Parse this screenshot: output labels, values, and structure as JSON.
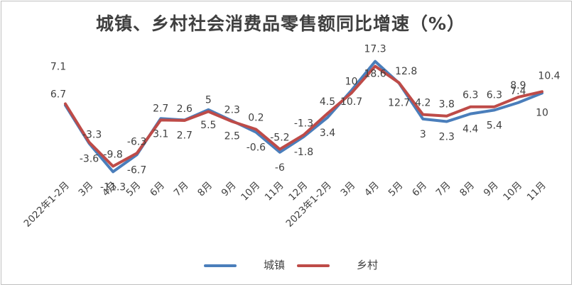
{
  "chart_data": {
    "type": "line",
    "title": "城镇、乡村社会消费品零售额同比增速（%）",
    "categories": [
      "2022年1-2月",
      "3月",
      "4月",
      "5月",
      "6月",
      "7月",
      "8月",
      "9月",
      "10月",
      "11月",
      "12月",
      "2023年1-2月",
      "3月",
      "4月",
      "5月",
      "6月",
      "7月",
      "8月",
      "9月",
      "10月",
      "11月"
    ],
    "series": [
      {
        "name": "城镇",
        "color": "#4a7ebb",
        "values": [
          6.7,
          -3.6,
          -11.3,
          -6.7,
          3.1,
          2.7,
          5.5,
          2.5,
          -0.6,
          -6,
          -1.8,
          3.4,
          10.7,
          18.6,
          12.7,
          3,
          2.3,
          4.4,
          5.4,
          7.4,
          10
        ],
        "labels": [
          "6.7",
          "-3.6",
          "-11.3",
          "-6.7",
          "3.1",
          "2.7",
          "5.5",
          "2.5",
          "-0.6",
          "-6",
          "-1.8",
          "3.4",
          "10.7",
          "18.6",
          "12.7",
          "3",
          "2.3",
          "4.4",
          "5.4",
          "7.4",
          "10"
        ]
      },
      {
        "name": "乡村",
        "color": "#be4b48",
        "values": [
          7.1,
          -3.3,
          -9.8,
          -6.3,
          2.7,
          2.6,
          5,
          2.3,
          0.2,
          -5.2,
          -1.3,
          4.5,
          10,
          17.3,
          12.8,
          4.2,
          3.8,
          6.3,
          6.3,
          8.9,
          10.4
        ],
        "labels": [
          "7.1",
          "-3.3",
          "-9.8",
          "-6.3",
          "2.7",
          "2.6",
          "5",
          "2.3",
          "0.2",
          "-5.2",
          "-1.3",
          "4.5",
          "10",
          "17.3",
          "12.8",
          "4.2",
          "3.8",
          "6.3",
          "6.3",
          "8.9",
          "10.4"
        ]
      }
    ],
    "legend_position": "bottom",
    "grid": false
  }
}
